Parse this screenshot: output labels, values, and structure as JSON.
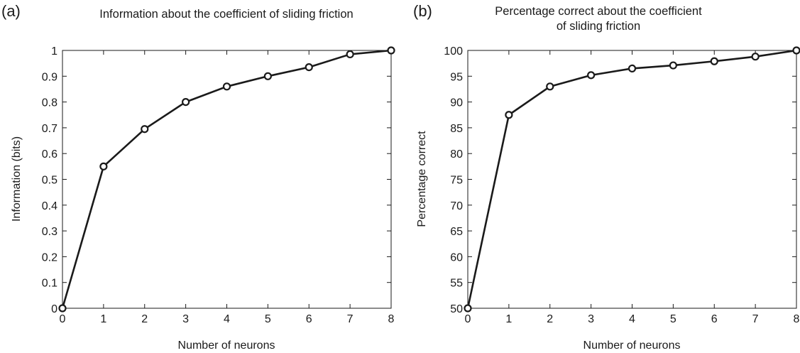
{
  "chart_data": [
    {
      "type": "line",
      "panel_label": "(a)",
      "title": "Information about the coefficient of sliding friction",
      "xlabel": "Number of neurons",
      "ylabel": "Information (bits)",
      "xlim": [
        0,
        8
      ],
      "ylim": [
        0,
        1
      ],
      "xticks": [
        "0",
        "1",
        "2",
        "3",
        "4",
        "5",
        "6",
        "7",
        "8"
      ],
      "yticks": [
        "0",
        "0.1",
        "0.2",
        "0.3",
        "0.4",
        "0.5",
        "0.6",
        "0.7",
        "0.8",
        "0.9",
        "1"
      ],
      "grid": false,
      "x": [
        0,
        1,
        2,
        3,
        4,
        5,
        6,
        7,
        8
      ],
      "y": [
        0,
        0.55,
        0.695,
        0.8,
        0.86,
        0.9,
        0.935,
        0.985,
        1.0
      ]
    },
    {
      "type": "line",
      "panel_label": "(b)",
      "title_lines": [
        "Percentage correct about the coefficient",
        "of sliding friction"
      ],
      "xlabel": "Number of neurons",
      "ylabel": "Percentage correct",
      "xlim": [
        0,
        8
      ],
      "ylim": [
        50,
        100
      ],
      "xticks": [
        "0",
        "1",
        "2",
        "3",
        "4",
        "5",
        "6",
        "7",
        "8"
      ],
      "yticks": [
        "50",
        "55",
        "60",
        "65",
        "70",
        "75",
        "80",
        "85",
        "90",
        "95",
        "100"
      ],
      "grid": false,
      "x": [
        0,
        1,
        2,
        3,
        4,
        5,
        6,
        7,
        8
      ],
      "y": [
        50,
        87.5,
        93,
        95.2,
        96.5,
        97.1,
        97.9,
        98.8,
        100
      ]
    }
  ]
}
